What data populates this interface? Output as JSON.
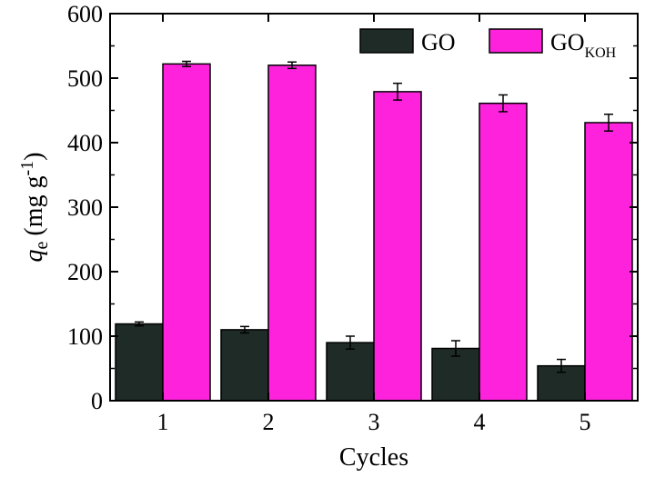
{
  "chart_data": {
    "type": "bar",
    "categories": [
      "1",
      "2",
      "3",
      "4",
      "5"
    ],
    "series": [
      {
        "name": "GO",
        "color": "#1e2b26",
        "values": [
          119,
          110,
          90,
          81,
          54
        ],
        "errors": [
          3,
          5,
          10,
          12,
          10
        ]
      },
      {
        "name": "GO_KOH",
        "label_main": "GO",
        "label_sub": "KOH",
        "color": "#ff22dd",
        "values": [
          522,
          520,
          479,
          461,
          431
        ],
        "errors": [
          4,
          5,
          13,
          13,
          13
        ]
      }
    ],
    "xlabel": "Cycles",
    "ylabel_q": "q",
    "ylabel_sub": "e",
    "ylabel_unit": "(mg g",
    "ylabel_exp": "-1",
    "ylabel_close": ")",
    "ylim": [
      0,
      600
    ],
    "yticks": [
      "0",
      "100",
      "200",
      "300",
      "400",
      "500",
      "600"
    ],
    "grid": false,
    "legend_position": "top-right"
  }
}
